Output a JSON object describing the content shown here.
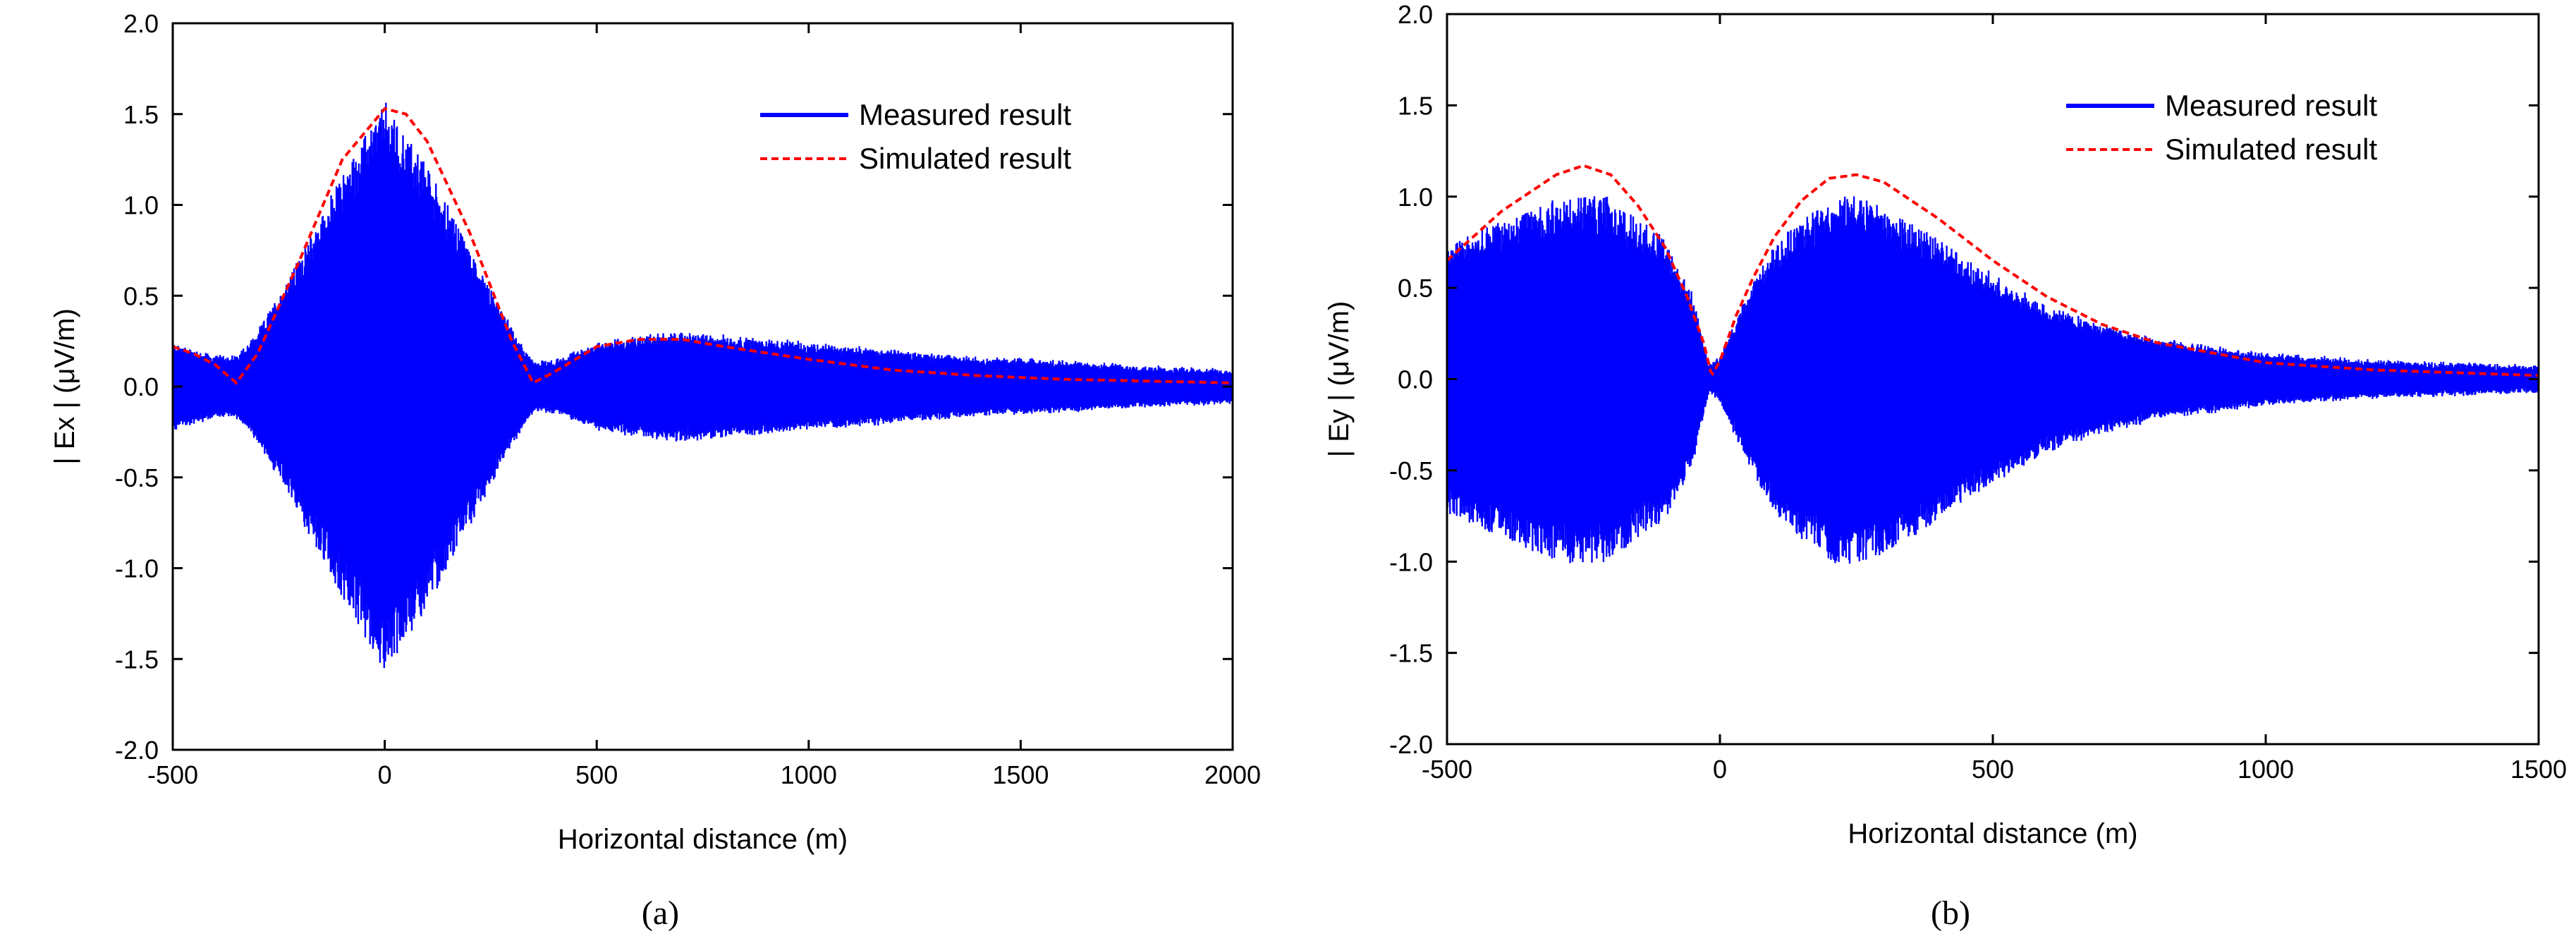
{
  "chart_data": [
    {
      "type": "line",
      "panel": "a",
      "caption": "(a)",
      "xlabel": "Horizontal distance (m)",
      "ylabel": "| Ex | (μV/m)",
      "xlim": [
        -500,
        2000
      ],
      "ylim": [
        -2.0,
        2.0
      ],
      "xticks": [
        "-500",
        "0",
        "500",
        "1000",
        "1500",
        "2000"
      ],
      "yticks": [
        "-2.0",
        "-1.5",
        "-1.0",
        "-0.5",
        "0.0",
        "0.5",
        "1.0",
        "1.5",
        "2.0"
      ],
      "legend_position": "top-right",
      "series": [
        {
          "name": "Measured result",
          "style": "solid",
          "color": "#0000ff",
          "kind": "oscillating band (±envelope)",
          "x": [
            -500,
            -400,
            -350,
            -300,
            -200,
            -100,
            0,
            100,
            200,
            300,
            350,
            400,
            500,
            600,
            700,
            800,
            900,
            1000,
            1200,
            1400,
            1600,
            1800,
            2000
          ],
          "envelope": [
            0.22,
            0.15,
            0.15,
            0.28,
            0.7,
            1.15,
            1.55,
            1.2,
            0.75,
            0.3,
            0.12,
            0.12,
            0.22,
            0.26,
            0.28,
            0.26,
            0.24,
            0.22,
            0.18,
            0.14,
            0.12,
            0.09,
            0.07
          ]
        },
        {
          "name": "Simulated result",
          "style": "dashed",
          "color": "#ff0000",
          "x": [
            -500,
            -450,
            -400,
            -350,
            -300,
            -200,
            -100,
            0,
            50,
            100,
            200,
            300,
            350,
            400,
            500,
            600,
            700,
            800,
            1000,
            1200,
            1400,
            1600,
            1800,
            2000
          ],
          "y": [
            0.22,
            0.18,
            0.12,
            0.02,
            0.18,
            0.7,
            1.25,
            1.53,
            1.5,
            1.35,
            0.85,
            0.25,
            0.02,
            0.08,
            0.22,
            0.26,
            0.26,
            0.22,
            0.15,
            0.09,
            0.06,
            0.04,
            0.03,
            0.02
          ]
        }
      ]
    },
    {
      "type": "line",
      "panel": "b",
      "caption": "(b)",
      "xlabel": "Horizontal distance (m)",
      "ylabel": "| Ey | (μV/m)",
      "xlim": [
        -500,
        1500
      ],
      "ylim": [
        -2.0,
        2.0
      ],
      "xticks": [
        "-500",
        "0",
        "500",
        "1000",
        "1500"
      ],
      "yticks": [
        "-2.0",
        "-1.5",
        "-1.0",
        "-0.5",
        "0.0",
        "0.5",
        "1.0",
        "1.5",
        "2.0"
      ],
      "legend_position": "top-right",
      "series": [
        {
          "name": "Measured result",
          "style": "solid",
          "color": "#0000ff",
          "kind": "oscillating band (±envelope)",
          "x": [
            -500,
            -400,
            -300,
            -250,
            -200,
            -100,
            -50,
            -20,
            0,
            50,
            100,
            200,
            250,
            300,
            400,
            500,
            600,
            700,
            800,
            1000,
            1200,
            1400,
            1500
          ],
          "envelope": [
            0.72,
            0.85,
            0.97,
            1.0,
            0.97,
            0.75,
            0.45,
            0.05,
            0.1,
            0.45,
            0.72,
            0.98,
            1.0,
            0.95,
            0.75,
            0.55,
            0.38,
            0.28,
            0.2,
            0.12,
            0.08,
            0.06,
            0.05
          ]
        },
        {
          "name": "Simulated result",
          "style": "dashed",
          "color": "#ff0000",
          "x": [
            -500,
            -400,
            -300,
            -250,
            -200,
            -150,
            -100,
            -60,
            -30,
            -15,
            0,
            30,
            60,
            100,
            150,
            200,
            250,
            300,
            400,
            500,
            600,
            700,
            800,
            1000,
            1200,
            1400,
            1500
          ],
          "y": [
            0.65,
            0.92,
            1.12,
            1.17,
            1.12,
            0.95,
            0.72,
            0.45,
            0.2,
            0.02,
            0.1,
            0.35,
            0.55,
            0.78,
            0.98,
            1.1,
            1.12,
            1.08,
            0.88,
            0.65,
            0.45,
            0.3,
            0.2,
            0.09,
            0.05,
            0.03,
            0.02
          ]
        }
      ]
    }
  ]
}
